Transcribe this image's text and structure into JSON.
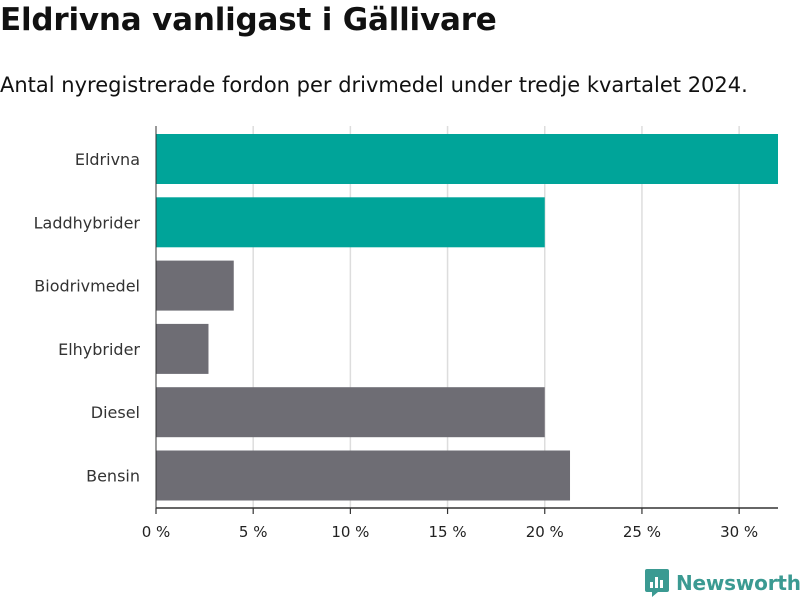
{
  "header": {
    "title": "Eldrivna vanligast i Gällivare",
    "subtitle": "Antal nyregistrerade fordon per drivmedel under tredje kvartalet 2024."
  },
  "brand": {
    "name": "Newsworthy",
    "icon": "newsworthy-logo-icon",
    "color": "#3b9a92"
  },
  "chart_data": {
    "type": "bar",
    "orientation": "horizontal",
    "title": "Eldrivna vanligast i Gällivare",
    "subtitle": "Antal nyregistrerade fordon per drivmedel under tredje kvartalet 2024.",
    "categories": [
      "Eldrivna",
      "Laddhybrider",
      "Biodrivmedel",
      "Elhybrider",
      "Diesel",
      "Bensin"
    ],
    "values": [
      32.0,
      20.0,
      4.0,
      2.7,
      20.0,
      21.3
    ],
    "colors": [
      "#00a499",
      "#00a499",
      "#6e6d74",
      "#6e6d74",
      "#6e6d74",
      "#6e6d74"
    ],
    "xlim": [
      0,
      32
    ],
    "xticks": [
      0,
      5,
      10,
      15,
      20,
      25,
      30
    ],
    "xtick_labels": [
      "0 %",
      "5 %",
      "10 %",
      "15 %",
      "20 %",
      "25 %",
      "30 %"
    ],
    "grid": true,
    "xlabel": "",
    "ylabel": ""
  }
}
